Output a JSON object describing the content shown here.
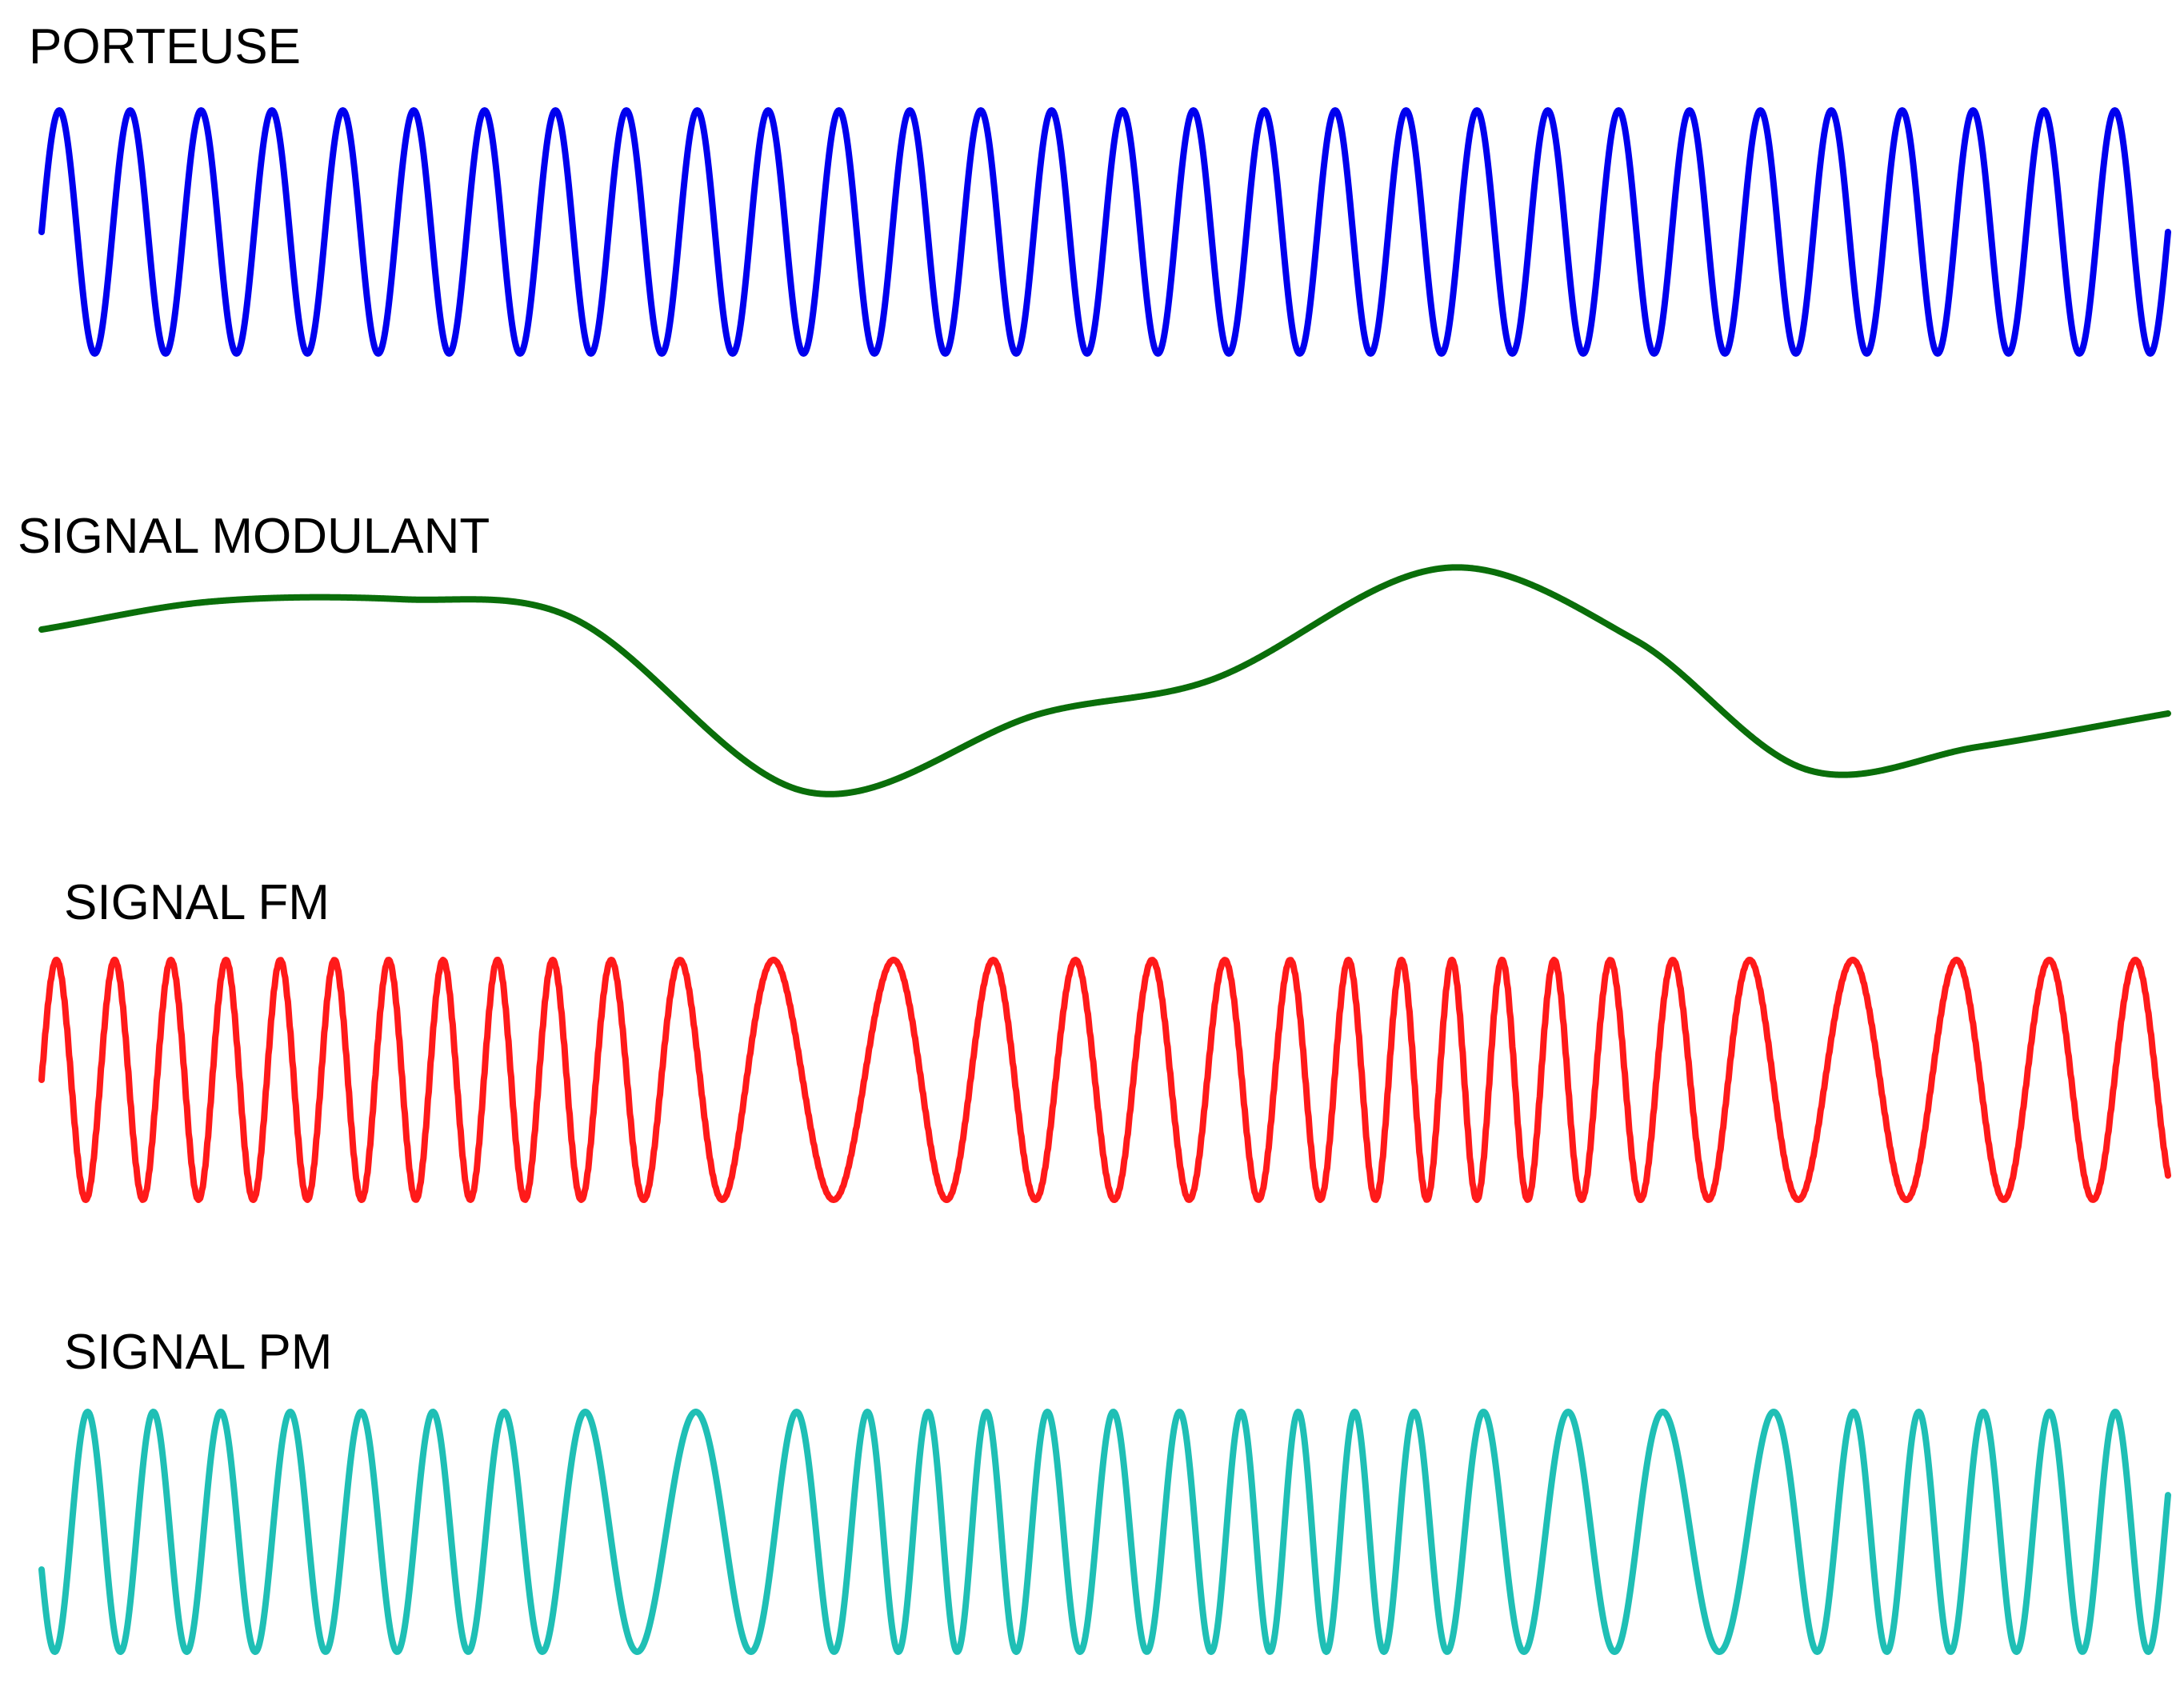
{
  "labels": {
    "carrier": "PORTEUSE",
    "modulating": "SIGNAL MODULANT",
    "fm": "SIGNAL FM",
    "pm": "SIGNAL PM"
  },
  "colors": {
    "carrier": "#0000ee",
    "modulating": "#0a6e0a",
    "fm": "#ff1a1a",
    "pm": "#1fbfb5"
  },
  "carrier_cycles": 30,
  "modulating_shape": [
    [
      0.0,
      0.45
    ],
    [
      0.08,
      0.7
    ],
    [
      0.17,
      0.72
    ],
    [
      0.25,
      0.55
    ],
    [
      0.36,
      -1.0
    ],
    [
      0.47,
      -0.3
    ],
    [
      0.55,
      0.0
    ],
    [
      0.66,
      1.0
    ],
    [
      0.75,
      0.35
    ],
    [
      0.83,
      -0.8
    ],
    [
      0.91,
      -0.6
    ],
    [
      1.0,
      -0.3
    ]
  ]
}
